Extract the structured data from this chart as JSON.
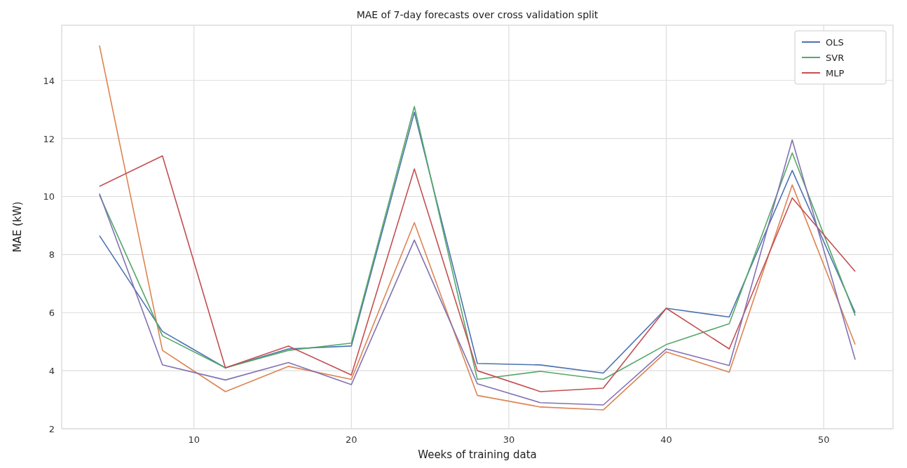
{
  "chart_data": {
    "type": "line",
    "title": "MAE of 7-day forecasts over cross validation split",
    "xlabel": "Weeks of training data",
    "ylabel": "MAE (kW)",
    "x": [
      4,
      8,
      12,
      16,
      20,
      24,
      28,
      32,
      36,
      40,
      44,
      48,
      52
    ],
    "xlim": [
      1.6,
      54.4
    ],
    "xticks": [
      10,
      20,
      30,
      40,
      50
    ],
    "ylim": [
      2,
      15.9
    ],
    "yticks": [
      2,
      4,
      6,
      8,
      10,
      12,
      14
    ],
    "grid": true,
    "legend": "top right",
    "series": [
      {
        "name": "OLS",
        "color": "#4c72b0",
        "values": [
          8.65,
          5.35,
          4.1,
          4.75,
          4.85,
          12.9,
          4.25,
          4.2,
          3.92,
          6.15,
          5.85,
          10.9,
          6.0
        ]
      },
      {
        "color": "#dd8452",
        "values": [
          15.2,
          4.7,
          3.28,
          4.15,
          3.7,
          9.1,
          3.15,
          2.75,
          2.65,
          4.65,
          3.95,
          10.4,
          4.9
        ]
      },
      {
        "name": "SVR",
        "color": "#55a868",
        "values": [
          10.05,
          5.2,
          4.1,
          4.7,
          4.95,
          13.1,
          3.7,
          3.98,
          3.7,
          4.9,
          5.62,
          11.5,
          5.9
        ]
      },
      {
        "name": "MLP",
        "color": "#c44e52",
        "values": [
          10.35,
          11.4,
          4.1,
          4.85,
          3.85,
          10.95,
          4.0,
          3.28,
          3.4,
          6.15,
          4.75,
          9.95,
          7.42
        ]
      },
      {
        "color": "#8172b3",
        "values": [
          10.1,
          4.2,
          3.68,
          4.28,
          3.52,
          8.5,
          3.55,
          2.9,
          2.82,
          4.75,
          4.18,
          11.95,
          4.38
        ]
      }
    ]
  }
}
